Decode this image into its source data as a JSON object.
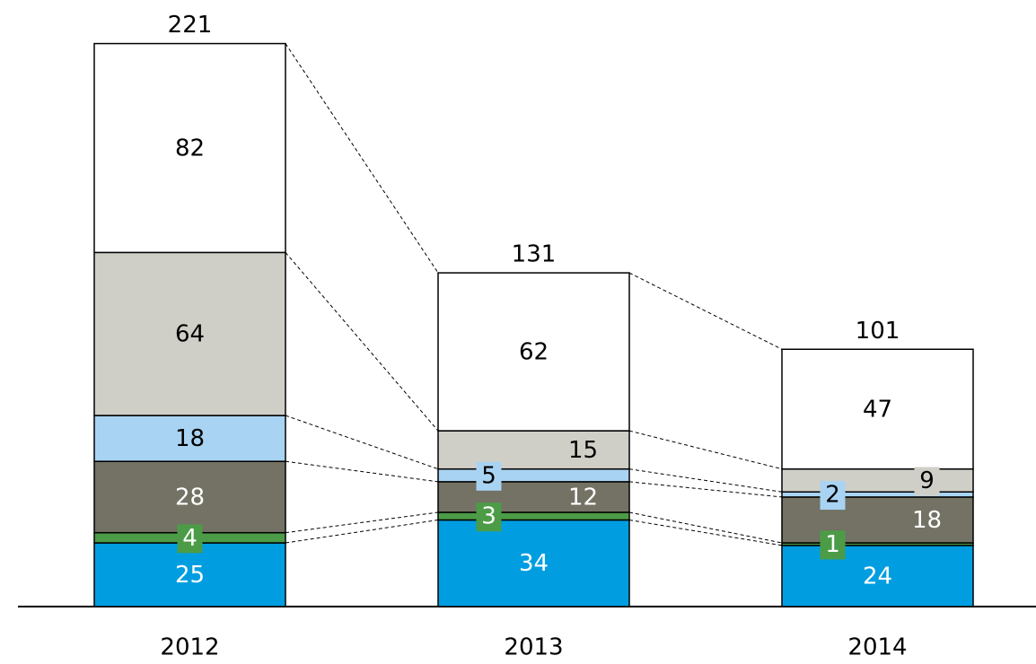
{
  "chart_data": {
    "type": "stacked_bar",
    "categories": [
      "2012",
      "2013",
      "2014"
    ],
    "series": [
      {
        "color": "#009ee0",
        "label_color": "#ffffff",
        "values": [
          25,
          34,
          24
        ]
      },
      {
        "color": "#4c9c47",
        "label_color": "#ffffff",
        "values": [
          4,
          3,
          1
        ]
      },
      {
        "color": "#737264",
        "label_color": "#ffffff",
        "values": [
          28,
          12,
          18
        ]
      },
      {
        "color": "#a9d3f2",
        "label_color": "#000000",
        "values": [
          18,
          5,
          2
        ]
      },
      {
        "color": "#d0cfc7",
        "label_color": "#000000",
        "values": [
          64,
          15,
          9
        ]
      },
      {
        "color": "#ffffff",
        "label_color": "#000000",
        "values": [
          82,
          62,
          47
        ]
      }
    ],
    "totals": [
      221,
      131,
      101
    ]
  }
}
